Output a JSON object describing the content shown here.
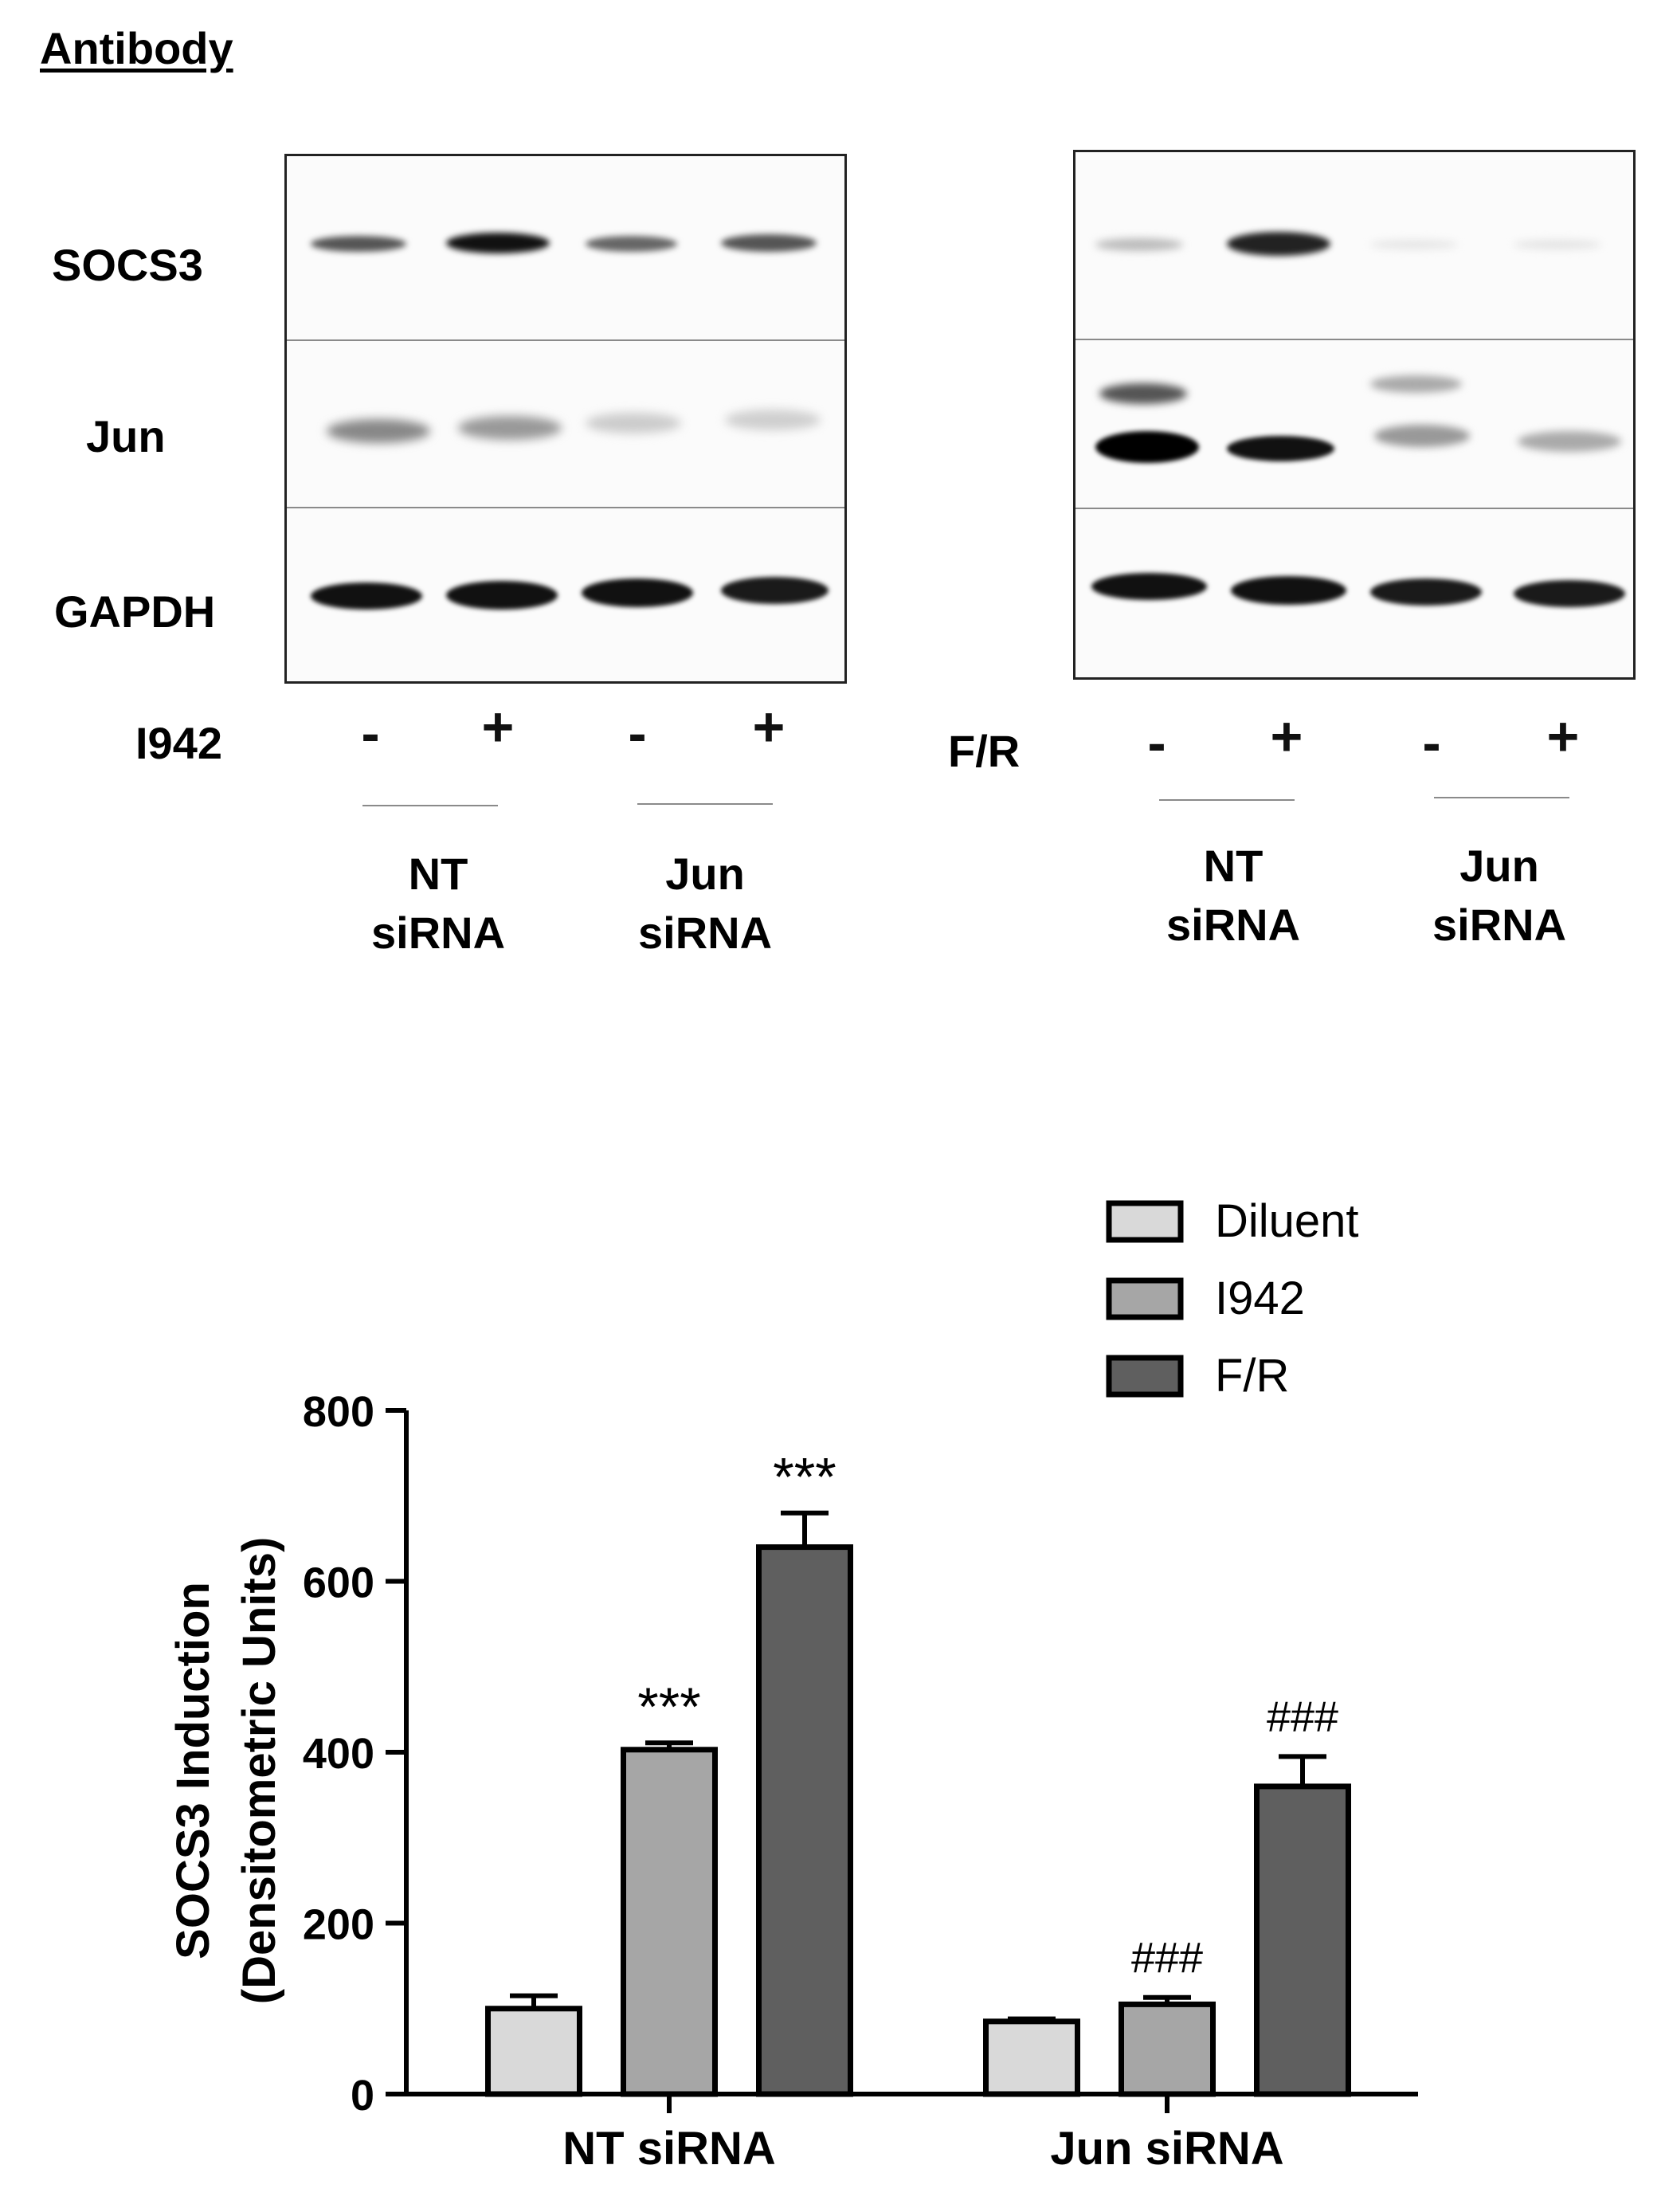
{
  "figure": {
    "header": "Antibody",
    "row_labels": [
      "SOCS3",
      "Jun",
      "GAPDH"
    ],
    "left_panel": {
      "treatment_label": "I942",
      "lanes": [
        "-",
        "+",
        "-",
        "+"
      ],
      "groups": [
        {
          "line1": "NT",
          "line2": "siRNA"
        },
        {
          "line1": "Jun",
          "line2": "siRNA"
        }
      ]
    },
    "right_panel": {
      "treatment_label": "F/R",
      "lanes": [
        "-",
        "+",
        "-",
        "+"
      ],
      "groups": [
        {
          "line1": "NT",
          "line2": "siRNA"
        },
        {
          "line1": "Jun",
          "line2": "siRNA"
        }
      ]
    }
  },
  "chart_data": {
    "type": "bar",
    "title": "",
    "xlabel": "",
    "ylabel_line1": "SOCS3 Induction",
    "ylabel_line2": "(Densitometric Units)",
    "ylim": [
      0,
      800
    ],
    "yticks": [
      "0",
      "200",
      "400",
      "600",
      "800"
    ],
    "categories": [
      "NT siRNA",
      "Jun siRNA"
    ],
    "legend_position": "top-right",
    "series": [
      {
        "name": "Diluent",
        "color": "#d9d9d9",
        "values": [
          100,
          85
        ],
        "errors": [
          15,
          3
        ],
        "annotations": [
          "",
          ""
        ]
      },
      {
        "name": "I942",
        "color": "#a6a6a6",
        "values": [
          403,
          105
        ],
        "errors": [
          8,
          8
        ],
        "annotations": [
          "***",
          "###"
        ]
      },
      {
        "name": "F/R",
        "color": "#5f5f5f",
        "values": [
          640,
          360
        ],
        "errors": [
          40,
          35
        ],
        "annotations": [
          "***",
          "###"
        ]
      }
    ]
  }
}
